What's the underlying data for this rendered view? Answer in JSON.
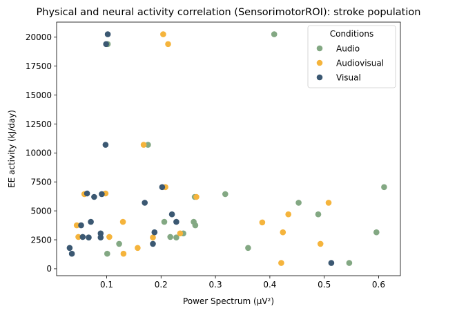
{
  "chart_data": {
    "type": "scatter",
    "title": "Physical and neural activity correlation (SensorimotorROI): stroke population",
    "xlabel": "Power Spectrum (μV²)",
    "ylabel": "EE activity (kJ/day)",
    "xlim": [
      0.008,
      0.64
    ],
    "ylim": [
      -600,
      21300
    ],
    "xticks": [
      0.1,
      0.2,
      0.3,
      0.4,
      0.5,
      0.6
    ],
    "xtick_labels": [
      "0.1",
      "0.2",
      "0.3",
      "0.4",
      "0.5",
      "0.6"
    ],
    "yticks": [
      0,
      2500,
      5000,
      7500,
      10000,
      12500,
      15000,
      17500,
      20000
    ],
    "ytick_labels": [
      "0",
      "2500",
      "5000",
      "7500",
      "10000",
      "12500",
      "15000",
      "17500",
      "20000"
    ],
    "grid": false,
    "legend": {
      "title": "Conditions",
      "placement": "top-right"
    },
    "series": [
      {
        "name": "Audio",
        "color": "#83a883",
        "points": [
          [
            0.408,
            20250
          ],
          [
            0.102,
            19400
          ],
          [
            0.176,
            10700
          ],
          [
            0.61,
            7050
          ],
          [
            0.262,
            6200
          ],
          [
            0.318,
            6450
          ],
          [
            0.453,
            5700
          ],
          [
            0.489,
            4700
          ],
          [
            0.26,
            4050
          ],
          [
            0.206,
            4050
          ],
          [
            0.263,
            3750
          ],
          [
            0.596,
            3150
          ],
          [
            0.241,
            3050
          ],
          [
            0.217,
            2750
          ],
          [
            0.228,
            2700
          ],
          [
            0.123,
            2150
          ],
          [
            0.36,
            1800
          ],
          [
            0.101,
            1300
          ],
          [
            0.546,
            500
          ]
        ]
      },
      {
        "name": "Audiovisual",
        "color": "#f5b43c",
        "points": [
          [
            0.204,
            20250
          ],
          [
            0.213,
            19400
          ],
          [
            0.168,
            10700
          ],
          [
            0.208,
            7050
          ],
          [
            0.098,
            6500
          ],
          [
            0.059,
            6450
          ],
          [
            0.265,
            6200
          ],
          [
            0.508,
            5700
          ],
          [
            0.434,
            4700
          ],
          [
            0.13,
            4050
          ],
          [
            0.386,
            4000
          ],
          [
            0.045,
            3750
          ],
          [
            0.424,
            3150
          ],
          [
            0.235,
            3050
          ],
          [
            0.048,
            2750
          ],
          [
            0.105,
            2750
          ],
          [
            0.185,
            2700
          ],
          [
            0.493,
            2150
          ],
          [
            0.157,
            1800
          ],
          [
            0.131,
            1300
          ],
          [
            0.421,
            500
          ]
        ]
      },
      {
        "name": "Visual",
        "color": "#3b5872",
        "points": [
          [
            0.102,
            20250
          ],
          [
            0.099,
            19400
          ],
          [
            0.098,
            10700
          ],
          [
            0.202,
            7050
          ],
          [
            0.064,
            6500
          ],
          [
            0.091,
            6450
          ],
          [
            0.077,
            6200
          ],
          [
            0.17,
            5700
          ],
          [
            0.22,
            4700
          ],
          [
            0.071,
            4050
          ],
          [
            0.228,
            4050
          ],
          [
            0.053,
            3750
          ],
          [
            0.188,
            3150
          ],
          [
            0.089,
            3050
          ],
          [
            0.056,
            2750
          ],
          [
            0.067,
            2700
          ],
          [
            0.089,
            2700
          ],
          [
            0.185,
            2150
          ],
          [
            0.032,
            1800
          ],
          [
            0.036,
            1300
          ],
          [
            0.513,
            500
          ]
        ]
      }
    ]
  }
}
